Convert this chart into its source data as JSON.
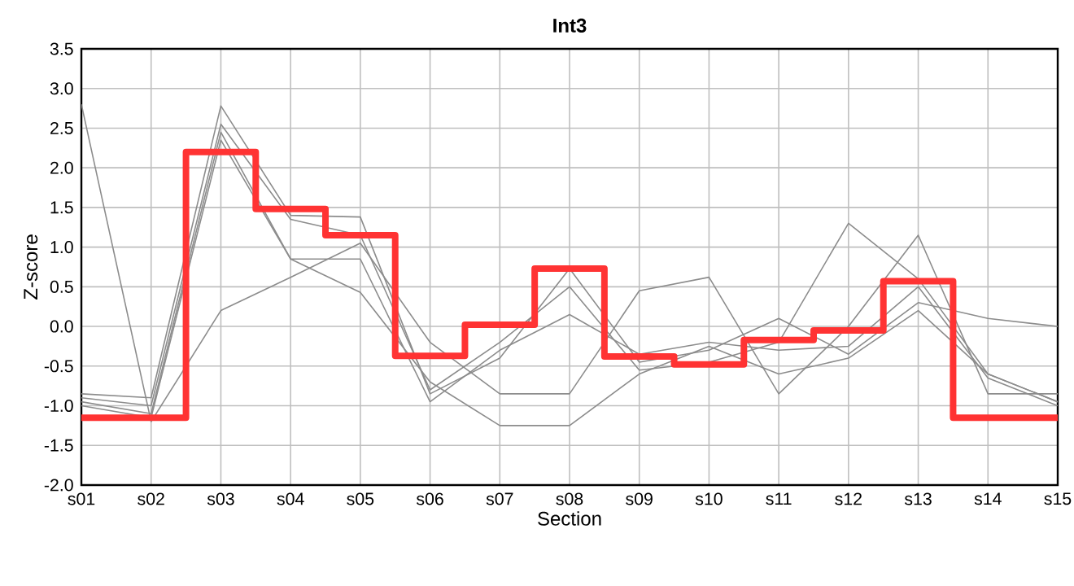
{
  "chart_data": {
    "type": "line",
    "title": "Int3",
    "xlabel": "Section",
    "ylabel": "Z-score",
    "categories": [
      "s01",
      "s02",
      "s03",
      "s04",
      "s05",
      "s06",
      "s07",
      "s08",
      "s09",
      "s10",
      "s11",
      "s12",
      "s13",
      "s14",
      "s15"
    ],
    "ylim": [
      -2,
      3.5
    ],
    "yticks": [
      {
        "value": -2,
        "label": "-2.0"
      },
      -1.5,
      {
        "value": -1,
        "label": "-1.0"
      },
      -0.5,
      {
        "value": 0,
        "label": "0.0"
      },
      0.5,
      {
        "value": 1,
        "label": "1.0"
      },
      1.5,
      {
        "value": 2,
        "label": "2.0"
      },
      2.5,
      {
        "value": 3,
        "label": "3.0"
      },
      3.5
    ],
    "grid": true,
    "marker": "none",
    "line_style": "solid",
    "series": [
      {
        "color": "#8c8c8c",
        "values": [
          2.8,
          -1.2,
          0.2,
          0.62,
          1.05,
          -0.2,
          -0.85,
          -0.85,
          0.45,
          0.62,
          -0.85,
          0.0,
          1.15,
          -0.85,
          -0.85
        ]
      },
      {
        "color": "#8c8c8c",
        "values": [
          -0.85,
          -0.9,
          2.78,
          1.4,
          1.38,
          -0.85,
          -0.4,
          0.73,
          -0.45,
          -0.3,
          0.1,
          -0.35,
          0.3,
          0.1,
          0.0
        ]
      },
      {
        "color": "#8c8c8c",
        "values": [
          -0.9,
          -1.0,
          2.55,
          1.35,
          1.15,
          -0.8,
          -0.2,
          0.5,
          -0.55,
          -0.45,
          -0.2,
          1.3,
          0.6,
          -0.6,
          -0.95
        ]
      },
      {
        "color": "#8c8c8c",
        "values": [
          -0.95,
          -1.1,
          2.45,
          0.85,
          0.85,
          -0.95,
          -0.3,
          0.15,
          -0.35,
          -0.2,
          -0.3,
          -0.25,
          0.5,
          -0.65,
          -1.0
        ]
      },
      {
        "color": "#8c8c8c",
        "values": [
          -1.0,
          -1.15,
          2.35,
          0.85,
          0.43,
          -0.7,
          -1.25,
          -1.25,
          -0.6,
          -0.25,
          -0.6,
          -0.4,
          0.2,
          -0.6,
          -0.95
        ]
      },
      {
        "type": "step",
        "color": "#ff3333",
        "values": [
          -1.15,
          -1.15,
          2.2,
          1.48,
          1.15,
          -0.37,
          0.02,
          0.73,
          -0.38,
          -0.48,
          -0.17,
          -0.05,
          0.57,
          -1.15,
          -1.15
        ]
      }
    ]
  }
}
